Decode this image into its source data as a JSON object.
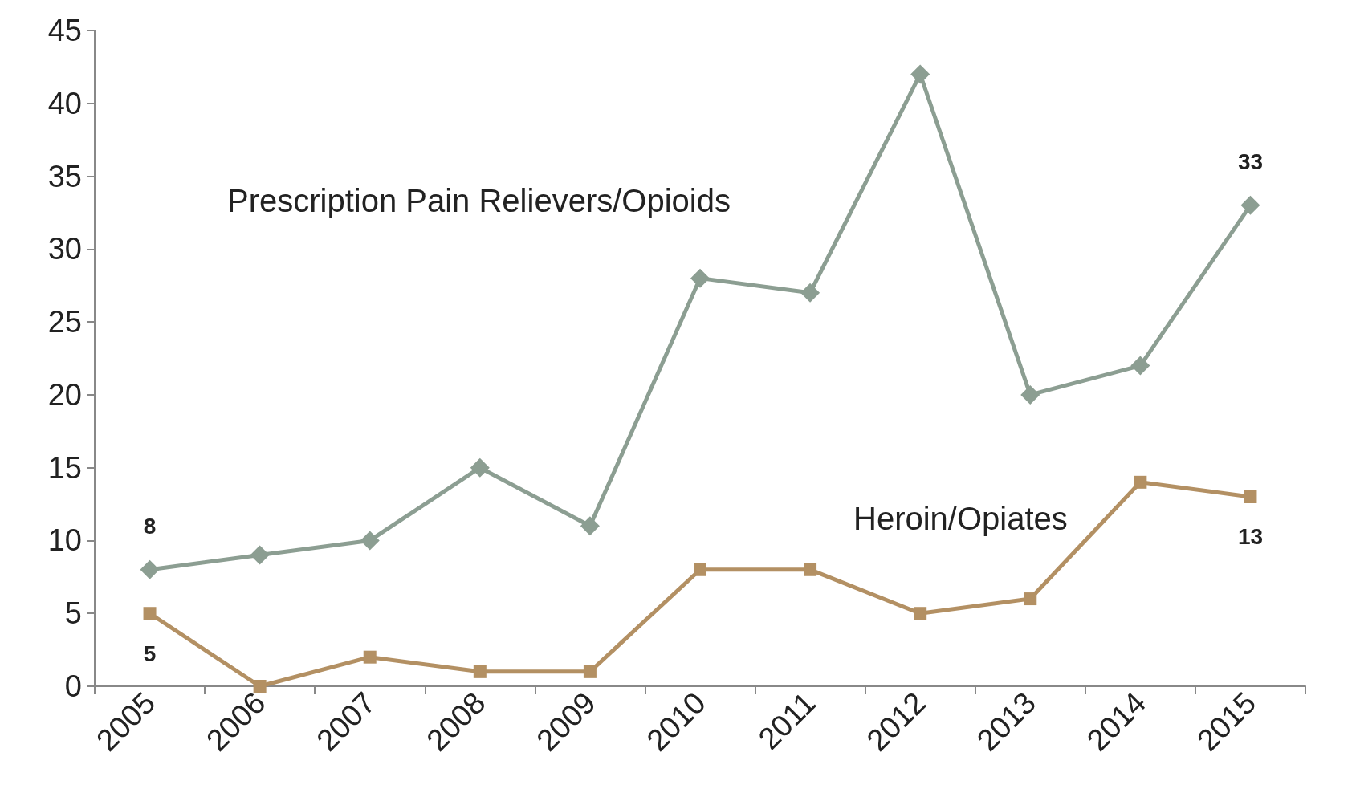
{
  "chart_data": {
    "type": "line",
    "categories": [
      "2005",
      "2006",
      "2007",
      "2008",
      "2009",
      "2010",
      "2011",
      "2012",
      "2013",
      "2014",
      "2015"
    ],
    "series": [
      {
        "name": "Prescription Pain Relievers/Opioids",
        "color": "#8c9e92",
        "marker": "diamond",
        "values": [
          8,
          9,
          10,
          15,
          11,
          28,
          27,
          42,
          20,
          22,
          33
        ],
        "value_labels": [
          "8",
          null,
          null,
          null,
          null,
          null,
          null,
          null,
          null,
          null,
          "33"
        ]
      },
      {
        "name": "Heroin/Opiates",
        "color": "#b39063",
        "marker": "square",
        "values": [
          5,
          0,
          2,
          1,
          1,
          8,
          8,
          5,
          6,
          14,
          13
        ],
        "value_labels": [
          "5",
          null,
          null,
          null,
          null,
          null,
          null,
          null,
          null,
          null,
          "13"
        ]
      }
    ],
    "ylim": [
      0,
      45
    ],
    "yticks": [
      0,
      5,
      10,
      15,
      20,
      25,
      30,
      35,
      40,
      45
    ],
    "grid": false,
    "legend": false,
    "line_style": "solid"
  }
}
